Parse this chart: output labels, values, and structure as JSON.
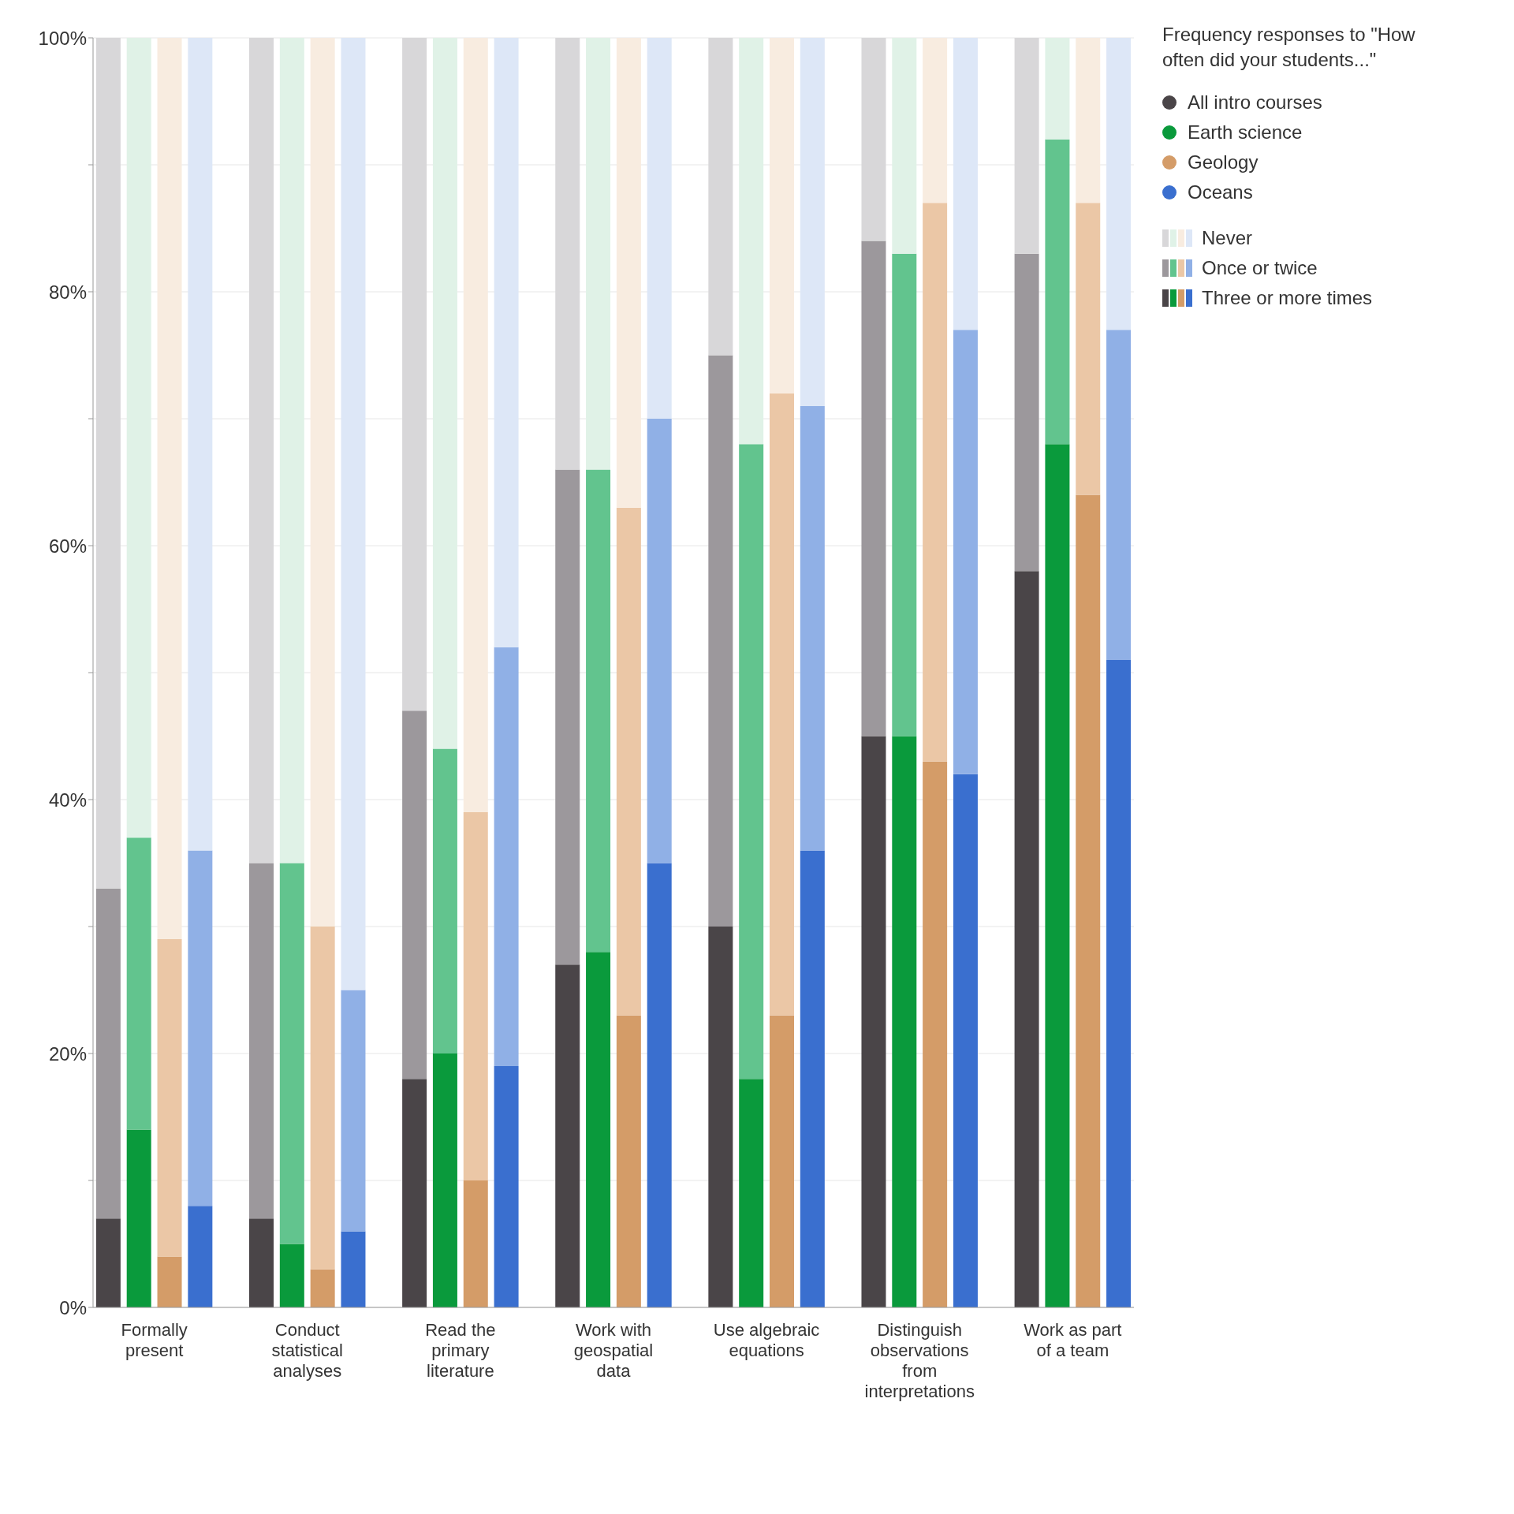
{
  "chart_data": {
    "type": "bar",
    "stacked": true,
    "legend_title": "Frequency responses to \"How often did your students...\"",
    "categories": [
      null,
      "Formally present",
      null,
      null,
      null,
      null,
      "Conduct statistical analyses",
      null,
      null,
      null,
      null,
      "Read the primary literature",
      null,
      null,
      null,
      null,
      "Work with geospatial data",
      null,
      null,
      null,
      null,
      "Use algebraic equations",
      null,
      null,
      null,
      null,
      "Distinguish observations from interpretations",
      null,
      null,
      null,
      null,
      "Work as part of a team",
      null,
      null
    ],
    "series": [
      {
        "name": "Three or more times",
        "colors": [
          "#4a4548",
          "#0a9a3c",
          "#d49c68",
          "#3a6fcf",
          null,
          "#4a4548",
          "#0a9a3c",
          "#d49c68",
          "#3a6fcf",
          null,
          "#4a4548",
          "#0a9a3c",
          "#d49c68",
          "#3a6fcf",
          null,
          "#4a4548",
          "#0a9a3c",
          "#d49c68",
          "#3a6fcf",
          null,
          "#4a4548",
          "#0a9a3c",
          "#d49c68",
          "#3a6fcf",
          null,
          "#4a4548",
          "#0a9a3c",
          "#d49c68",
          "#3a6fcf",
          null,
          "#4a4548",
          "#0a9a3c",
          "#d49c68",
          "#3a6fcf"
        ],
        "values": [
          7,
          14,
          4,
          8,
          null,
          7,
          5,
          3,
          6,
          null,
          18,
          20,
          10,
          19,
          null,
          27,
          28,
          23,
          35,
          null,
          30,
          18,
          23,
          36,
          null,
          45,
          45,
          43,
          42,
          null,
          58,
          68,
          64,
          51
        ]
      },
      {
        "name": "Once or twice",
        "colors": [
          "#9c989c",
          "#62c48e",
          "#ebc7a6",
          "#90b0e6",
          null,
          "#9c989c",
          "#62c48e",
          "#ebc7a6",
          "#90b0e6",
          null,
          "#9c989c",
          "#62c48e",
          "#ebc7a6",
          "#90b0e6",
          null,
          "#9c989c",
          "#62c48e",
          "#ebc7a6",
          "#90b0e6",
          null,
          "#9c989c",
          "#62c48e",
          "#ebc7a6",
          "#90b0e6",
          null,
          "#9c989c",
          "#62c48e",
          "#ebc7a6",
          "#90b0e6",
          null,
          "#9c989c",
          "#62c48e",
          "#ebc7a6",
          "#90b0e6"
        ],
        "values": [
          26,
          23,
          25,
          28,
          null,
          28,
          30,
          27,
          19,
          null,
          29,
          24,
          29,
          33,
          null,
          39,
          38,
          40,
          35,
          null,
          45,
          50,
          49,
          35,
          null,
          39,
          38,
          44,
          35,
          null,
          25,
          24,
          23,
          26
        ]
      },
      {
        "name": "Never",
        "colors": [
          "#d8d7d9",
          "#e0f2e7",
          "#f8ece0",
          "#dde7f7",
          null,
          "#d8d7d9",
          "#e0f2e7",
          "#f8ece0",
          "#dde7f7",
          null,
          "#d8d7d9",
          "#e0f2e7",
          "#f8ece0",
          "#dde7f7",
          null,
          "#d8d7d9",
          "#e0f2e7",
          "#f8ece0",
          "#dde7f7",
          null,
          "#d8d7d9",
          "#e0f2e7",
          "#f8ece0",
          "#dde7f7",
          null,
          "#d8d7d9",
          "#e0f2e7",
          "#f8ece0",
          "#dde7f7",
          null,
          "#d8d7d9",
          "#e0f2e7",
          "#f8ece0",
          "#dde7f7"
        ],
        "values": [
          67,
          63,
          71,
          64,
          null,
          65,
          65,
          70,
          75,
          null,
          53,
          56,
          61,
          48,
          null,
          34,
          34,
          37,
          30,
          null,
          25,
          32,
          28,
          29,
          null,
          16,
          17,
          13,
          23,
          null,
          17,
          8,
          13,
          23
        ]
      }
    ],
    "annotations": [
      "All intro courses",
      "Earth science",
      "Geology",
      "Oceans"
    ],
    "ylim": [
      0,
      100
    ],
    "yticks": [
      {
        "value": 0,
        "label": "0%"
      },
      {
        "value": 10,
        "label": null
      },
      {
        "value": 20,
        "label": "20%"
      },
      {
        "value": 30,
        "label": null
      },
      {
        "value": 40,
        "label": "40%"
      },
      {
        "value": 50,
        "label": null
      },
      {
        "value": 60,
        "label": "60%"
      },
      {
        "value": 70,
        "label": null
      },
      {
        "value": 80,
        "label": "80%"
      },
      {
        "value": 90,
        "label": null
      },
      {
        "value": 100,
        "label": "100%"
      }
    ],
    "grid": "y",
    "legend": "right"
  }
}
